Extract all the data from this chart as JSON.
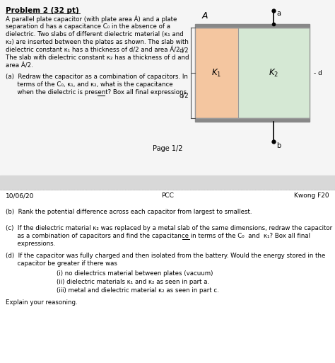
{
  "title": "Problem 2 (32 pt)",
  "bg_color": "#ffffff",
  "footer_left": "10/06/20",
  "footer_center": "PCC",
  "footer_right": "Kwong F20",
  "k1_color": "#f4c6a0",
  "k2_color": "#d5e8d4",
  "plate_color": "#888888",
  "body_lines": [
    "A parallel plate capacitor (with plate area Á) and a plate",
    "separation d has a capacitance C₀ in the absence of a",
    "dielectric. Two slabs of different dielectric material (κ₁ and",
    "κ₂) are inserted between the plates as shown. The slab with",
    "dielectric constant κ₁ has a thickness of d/2 and area Á/2.",
    "The slab with dielectric constant κ₂ has a thickness of d and",
    "area Á/2."
  ],
  "part_a_lines": [
    "(a)  Redraw the capacitor as a combination of capacitors. In",
    "      terms of the C₀, κ₁, and κ₂, what is the capacitance",
    "      when the dielectric is present? Box all final expressions."
  ],
  "page_label": "Page 1/2",
  "part_b": "(b)  Rank the potential difference across each capacitor from largest to smallest.",
  "part_c_lines": [
    "(c)  If the dielectric material κ₂ was replaced by a metal slab of the same dimensions, redraw the capacitor",
    "      as a combination of capacitors and find the capacitance in terms of the C₀  and  κ₁? Box all final",
    "      expressions."
  ],
  "part_d_lines": [
    "(d)  If the capacitor was fully charged and then isolated from the battery. Would the energy stored in the",
    "      capacitor be greater if there was"
  ],
  "part_d_i": "(i) no dielectrics material between plates (vacuum)",
  "part_d_ii": "(ii) dielectric materials κ₁ and κ₂ as seen in part a.",
  "part_d_iii": "(iii) metal and dielectric material κ₂ as seen in part c.",
  "part_d_explain": "Explain your reasoning."
}
